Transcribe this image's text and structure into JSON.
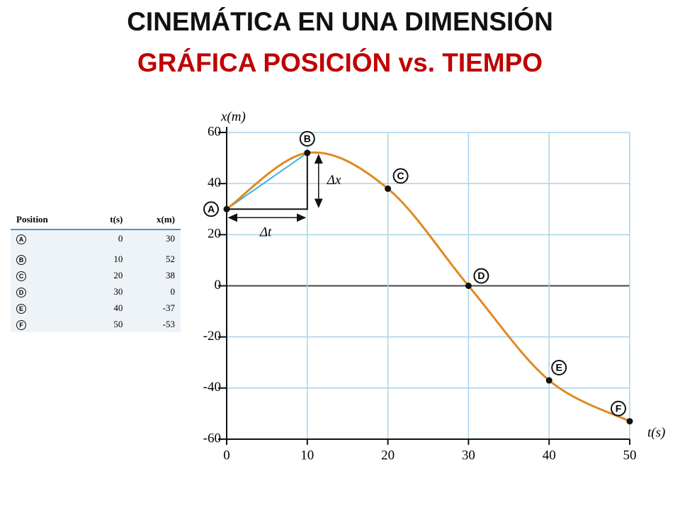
{
  "chart_data": {
    "type": "line",
    "title": "CINEMÁTICA EN UNA DIMENSIÓN",
    "subtitle": "GRÁFICA POSICIÓN vs. TIEMPO",
    "x": [
      0,
      10,
      20,
      30,
      40,
      50
    ],
    "values": [
      30,
      52,
      38,
      0,
      -37,
      -53
    ],
    "point_labels": [
      "A",
      "B",
      "C",
      "D",
      "E",
      "F"
    ],
    "color": "#e08a1e",
    "xlabel": "t(s)",
    "ylabel": "x(m)",
    "xlim": [
      0,
      50
    ],
    "ylim": [
      -60,
      60
    ],
    "xticks": [
      0,
      10,
      20,
      30,
      40,
      50
    ],
    "yticks": [
      -60,
      -40,
      -20,
      0,
      20,
      40,
      60
    ],
    "grid": true,
    "annotations": [
      "Δx",
      "Δt"
    ]
  },
  "table": {
    "header": [
      "Position",
      "t(s)",
      "x(m)"
    ],
    "rows": [
      [
        "A",
        0,
        30
      ],
      [
        "B",
        10,
        52
      ],
      [
        "C",
        20,
        38
      ],
      [
        "D",
        30,
        0
      ],
      [
        "E",
        40,
        -37
      ],
      [
        "F",
        50,
        -53
      ]
    ]
  }
}
